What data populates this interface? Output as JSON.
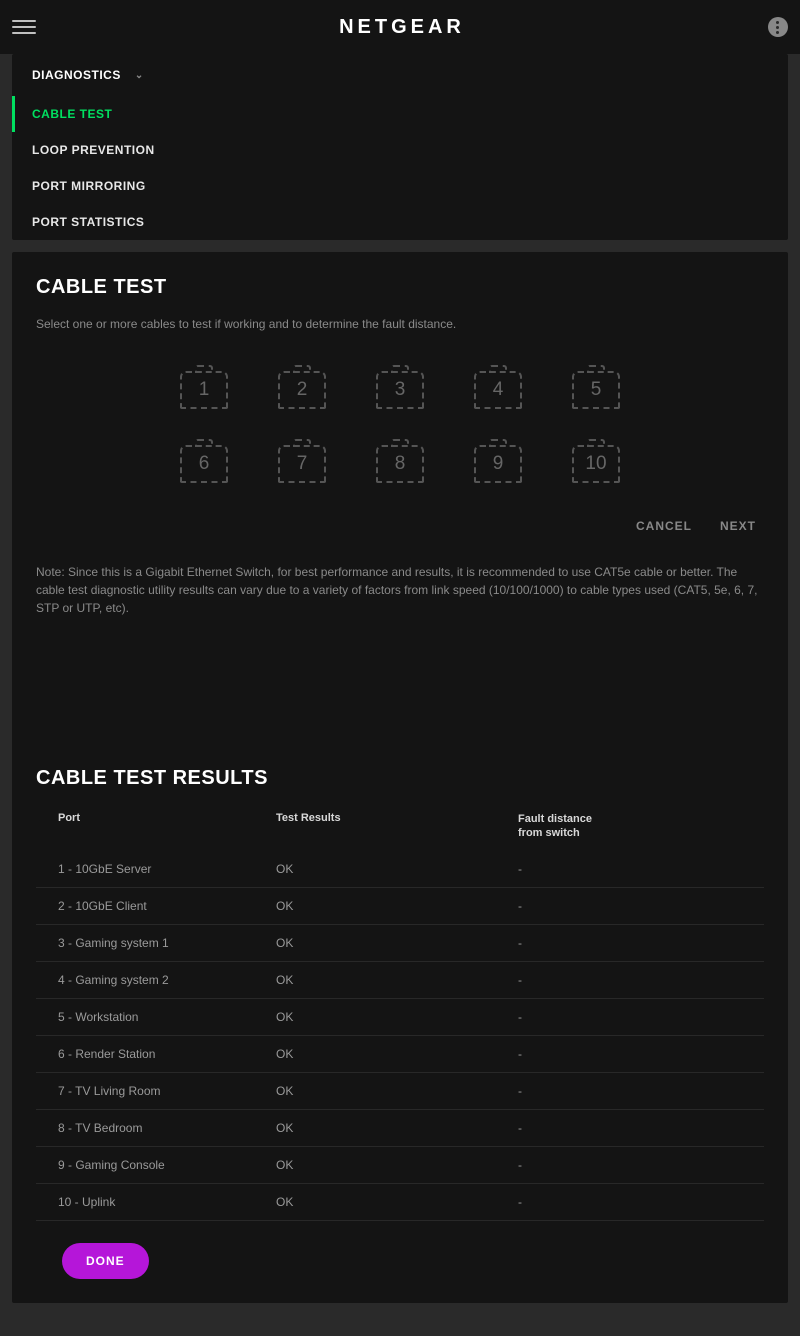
{
  "header": {
    "logo": "NETGEAR"
  },
  "nav": {
    "section": "DIAGNOSTICS",
    "items": [
      {
        "label": "CABLE TEST",
        "active": true
      },
      {
        "label": "LOOP PREVENTION",
        "active": false
      },
      {
        "label": "PORT MIRRORING",
        "active": false
      },
      {
        "label": "PORT STATISTICS",
        "active": false
      }
    ]
  },
  "main": {
    "title": "CABLE TEST",
    "subtitle": "Select one or more cables to test if working and to determine the fault distance.",
    "ports_row1": [
      "1",
      "2",
      "3",
      "4",
      "5"
    ],
    "ports_row2": [
      "6",
      "7",
      "8",
      "9",
      "10"
    ],
    "cancel_label": "CANCEL",
    "next_label": "NEXT",
    "note": "Note: Since this is a Gigabit Ethernet Switch, for best performance and results, it is recommended to use CAT5e cable or better. The cable test diagnostic utility results can vary due to a variety of factors from link speed (10/100/1000) to cable types used (CAT5, 5e, 6, 7, STP or UTP, etc)."
  },
  "results": {
    "title": "CABLE TEST RESULTS",
    "columns": {
      "port": "Port",
      "test_result": "Test Results",
      "fault_distance_l1": "Fault distance",
      "fault_distance_l2": "from switch"
    },
    "rows": [
      {
        "port": "1 - 10GbE Server",
        "result": "OK",
        "fault": "-"
      },
      {
        "port": "2 - 10GbE Client",
        "result": "OK",
        "fault": "-"
      },
      {
        "port": "3 - Gaming system 1",
        "result": "OK",
        "fault": "-"
      },
      {
        "port": "4 - Gaming system 2",
        "result": "OK",
        "fault": "-"
      },
      {
        "port": "5 - Workstation",
        "result": "OK",
        "fault": "-"
      },
      {
        "port": "6 - Render Station",
        "result": "OK",
        "fault": "-"
      },
      {
        "port": "7 - TV Living Room",
        "result": "OK",
        "fault": "-"
      },
      {
        "port": "8 - TV Bedroom",
        "result": "OK",
        "fault": "-"
      },
      {
        "port": "9 - Gaming Console",
        "result": "OK",
        "fault": "-"
      },
      {
        "port": "10 - Uplink",
        "result": "OK",
        "fault": "-"
      }
    ],
    "done_label": "DONE"
  },
  "colors": {
    "accent_green": "#00e060",
    "accent_purple": "#b516d9",
    "bg_body": "#2a2a2a",
    "bg_card": "#141414",
    "text_muted": "#8a8a8a",
    "port_border": "#555555"
  }
}
